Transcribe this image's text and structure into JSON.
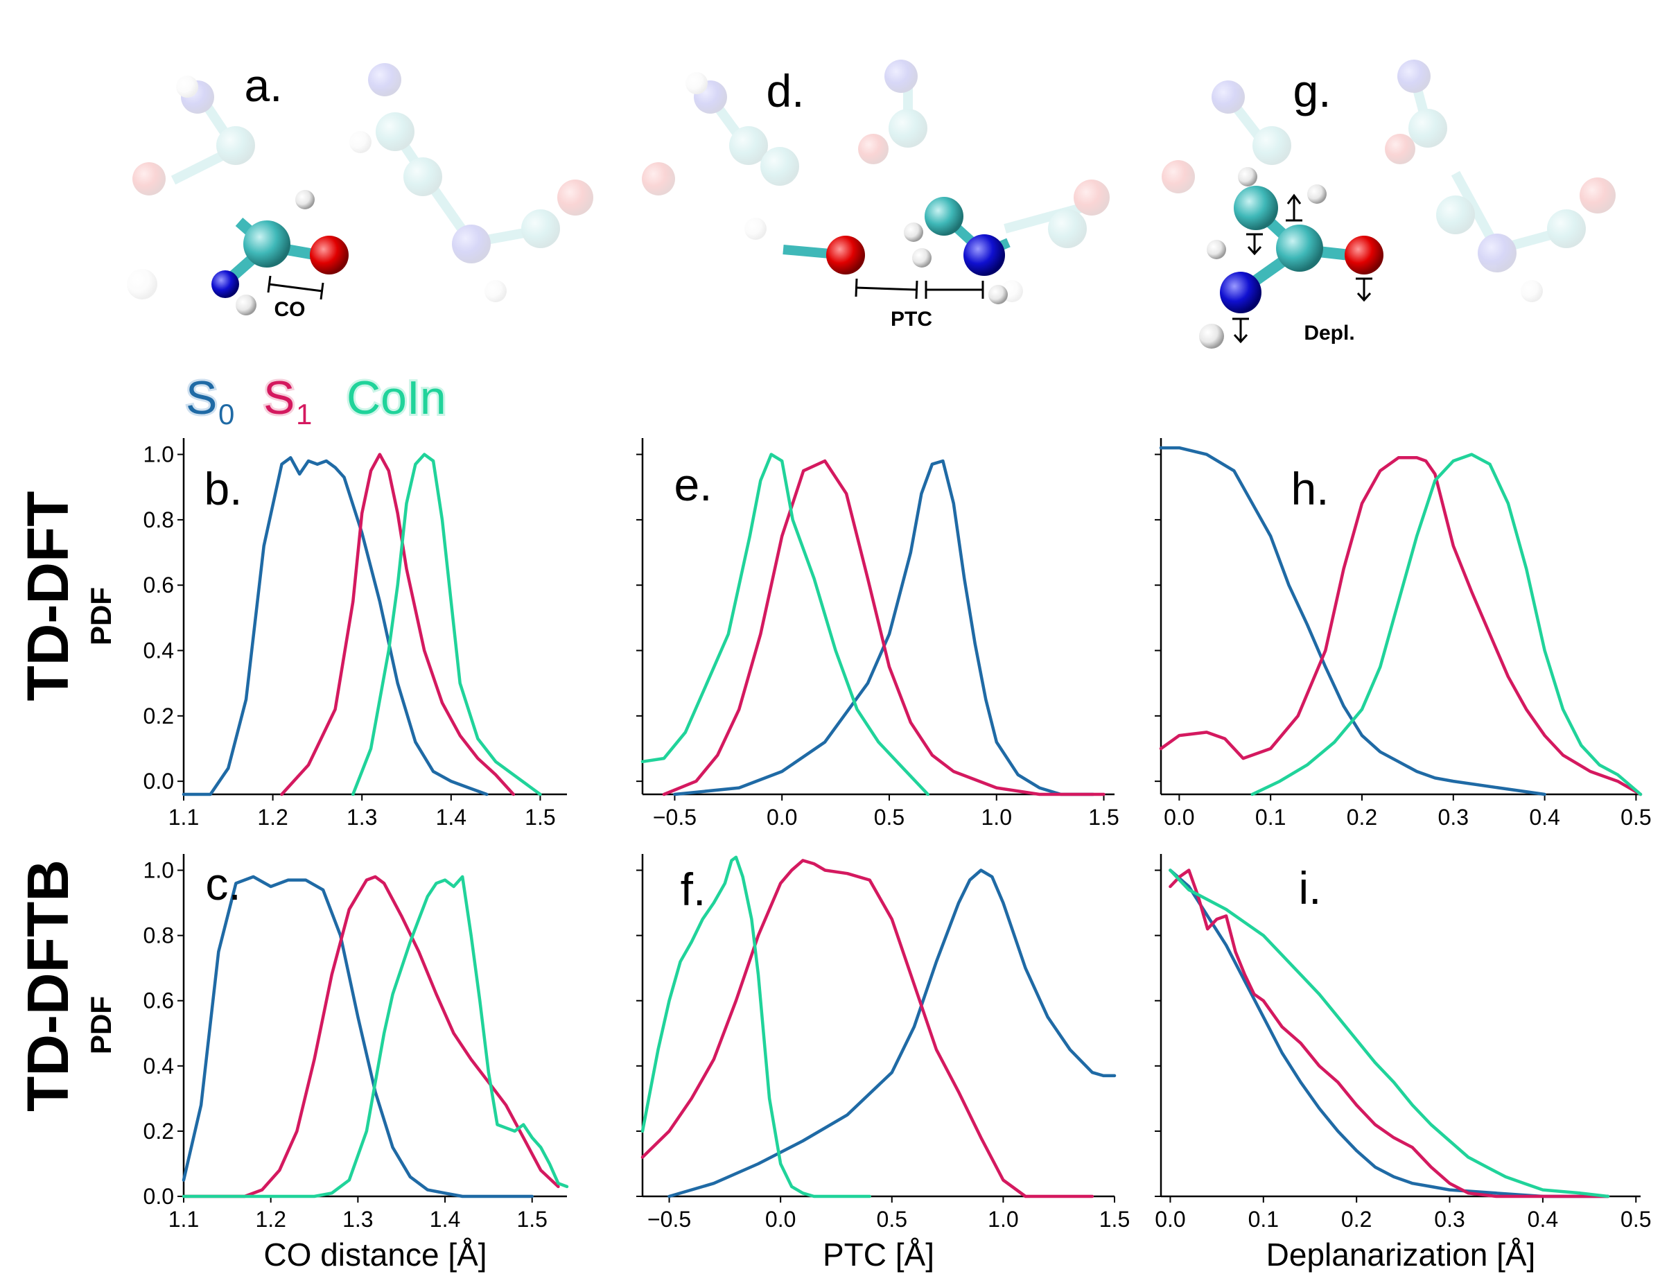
{
  "legend": {
    "s0": "S",
    "s0_sub": "0",
    "s1": "S",
    "s1_sub": "1",
    "coin": "CoIn"
  },
  "colors": {
    "S0": "#1f6aa5",
    "S1": "#d4195f",
    "CoIn": "#20d39a",
    "carbon": "#3fb8b8",
    "oxygen": "#e00000",
    "nitrogen": "#1010d0",
    "hydrogen": "#e8e8e8"
  },
  "row_labels": [
    "TD-DFT",
    "TD-DFTB"
  ],
  "molecules": [
    {
      "letter": "a.",
      "label": "CO"
    },
    {
      "letter": "d.",
      "label": "PTC"
    },
    {
      "letter": "g.",
      "label": "Depl."
    }
  ],
  "chart_data": [
    {
      "type": "line",
      "panel": "b.",
      "xlabel": "",
      "ylabel": "PDF",
      "xlim": [
        1.1,
        1.53
      ],
      "ylim": [
        -0.04,
        1.05
      ],
      "xticks": [
        1.1,
        1.2,
        1.3,
        1.4,
        1.5
      ],
      "xtick_labels": [
        "1.1",
        "1.2",
        "1.3",
        "1.4",
        "1.5"
      ],
      "yticks": [
        0.0,
        0.2,
        0.4,
        0.6,
        0.8,
        1.0
      ],
      "ytick_labels": [
        "0.0",
        "0.2",
        "0.4",
        "0.6",
        "0.8",
        "1.0"
      ],
      "series": [
        {
          "name": "S0",
          "x": [
            1.1,
            1.13,
            1.15,
            1.17,
            1.19,
            1.21,
            1.22,
            1.23,
            1.24,
            1.25,
            1.26,
            1.27,
            1.28,
            1.3,
            1.32,
            1.34,
            1.36,
            1.38,
            1.4,
            1.42,
            1.44
          ],
          "y": [
            -0.04,
            -0.04,
            0.04,
            0.25,
            0.72,
            0.97,
            0.99,
            0.94,
            0.98,
            0.97,
            0.98,
            0.96,
            0.93,
            0.76,
            0.55,
            0.3,
            0.12,
            0.03,
            0.0,
            -0.02,
            -0.04
          ]
        },
        {
          "name": "S1",
          "x": [
            1.21,
            1.24,
            1.27,
            1.29,
            1.3,
            1.31,
            1.32,
            1.33,
            1.34,
            1.35,
            1.37,
            1.39,
            1.41,
            1.43,
            1.45,
            1.47
          ],
          "y": [
            -0.04,
            0.05,
            0.22,
            0.55,
            0.82,
            0.95,
            1.0,
            0.95,
            0.82,
            0.65,
            0.4,
            0.24,
            0.14,
            0.07,
            0.02,
            -0.04
          ]
        },
        {
          "name": "CoIn",
          "x": [
            1.29,
            1.31,
            1.33,
            1.34,
            1.35,
            1.36,
            1.37,
            1.38,
            1.39,
            1.4,
            1.41,
            1.43,
            1.45,
            1.47,
            1.5
          ],
          "y": [
            -0.04,
            0.1,
            0.4,
            0.6,
            0.85,
            0.97,
            1.0,
            0.98,
            0.8,
            0.55,
            0.3,
            0.13,
            0.06,
            0.02,
            -0.04
          ]
        }
      ]
    },
    {
      "type": "line",
      "panel": "e.",
      "xlabel": "",
      "ylabel": "",
      "xlim": [
        -0.65,
        1.55
      ],
      "ylim": [
        -0.04,
        1.05
      ],
      "xticks": [
        -0.5,
        0.0,
        0.5,
        1.0,
        1.5
      ],
      "xtick_labels": [
        "−0.5",
        "0.0",
        "0.5",
        "1.0",
        "1.5"
      ],
      "yticks": [
        0.0,
        0.2,
        0.4,
        0.6,
        0.8,
        1.0
      ],
      "ytick_labels": [
        "",
        "",
        "",
        "",
        "",
        ""
      ],
      "series": [
        {
          "name": "S0",
          "x": [
            -0.5,
            -0.2,
            0.0,
            0.2,
            0.4,
            0.5,
            0.6,
            0.65,
            0.7,
            0.75,
            0.8,
            0.85,
            0.9,
            0.95,
            1.0,
            1.1,
            1.2,
            1.3,
            1.45
          ],
          "y": [
            -0.04,
            -0.02,
            0.03,
            0.12,
            0.3,
            0.45,
            0.7,
            0.88,
            0.97,
            0.98,
            0.85,
            0.62,
            0.42,
            0.25,
            0.12,
            0.02,
            -0.02,
            -0.04,
            -0.04
          ]
        },
        {
          "name": "S1",
          "x": [
            -0.55,
            -0.4,
            -0.3,
            -0.2,
            -0.1,
            0.0,
            0.1,
            0.2,
            0.3,
            0.4,
            0.5,
            0.6,
            0.7,
            0.8,
            1.0,
            1.2,
            1.5
          ],
          "y": [
            -0.04,
            0.0,
            0.08,
            0.22,
            0.45,
            0.75,
            0.95,
            0.98,
            0.88,
            0.62,
            0.35,
            0.18,
            0.08,
            0.03,
            -0.02,
            -0.04,
            -0.04
          ]
        },
        {
          "name": "CoIn",
          "x": [
            -0.65,
            -0.55,
            -0.45,
            -0.35,
            -0.25,
            -0.15,
            -0.1,
            -0.05,
            0.0,
            0.05,
            0.15,
            0.25,
            0.35,
            0.45,
            0.55,
            0.68
          ],
          "y": [
            0.06,
            0.07,
            0.15,
            0.3,
            0.45,
            0.75,
            0.92,
            1.0,
            0.98,
            0.8,
            0.62,
            0.4,
            0.22,
            0.12,
            0.05,
            -0.04
          ]
        }
      ]
    },
    {
      "type": "line",
      "panel": "h.",
      "xlabel": "",
      "ylabel": "",
      "xlim": [
        -0.02,
        0.505
      ],
      "ylim": [
        -0.04,
        1.05
      ],
      "xticks": [
        0.0,
        0.1,
        0.2,
        0.3,
        0.4,
        0.5
      ],
      "xtick_labels": [
        "0.0",
        "0.1",
        "0.2",
        "0.3",
        "0.4",
        "0.5"
      ],
      "yticks": [
        0.0,
        0.2,
        0.4,
        0.6,
        0.8,
        1.0
      ],
      "ytick_labels": [
        "",
        "",
        "",
        "",
        "",
        ""
      ],
      "series": [
        {
          "name": "S0",
          "x": [
            -0.02,
            0.0,
            0.03,
            0.06,
            0.08,
            0.1,
            0.12,
            0.14,
            0.16,
            0.18,
            0.2,
            0.22,
            0.24,
            0.26,
            0.28,
            0.3,
            0.35,
            0.4
          ],
          "y": [
            1.02,
            1.02,
            1.0,
            0.95,
            0.85,
            0.75,
            0.6,
            0.48,
            0.35,
            0.23,
            0.14,
            0.09,
            0.06,
            0.03,
            0.01,
            0.0,
            -0.02,
            -0.04
          ]
        },
        {
          "name": "S1",
          "x": [
            -0.02,
            0.0,
            0.03,
            0.05,
            0.07,
            0.1,
            0.13,
            0.16,
            0.18,
            0.2,
            0.22,
            0.24,
            0.26,
            0.27,
            0.28,
            0.3,
            0.32,
            0.34,
            0.36,
            0.38,
            0.4,
            0.42,
            0.45,
            0.48,
            0.505
          ],
          "y": [
            0.1,
            0.14,
            0.15,
            0.13,
            0.07,
            0.1,
            0.2,
            0.4,
            0.65,
            0.85,
            0.95,
            0.99,
            0.99,
            0.98,
            0.94,
            0.72,
            0.58,
            0.45,
            0.32,
            0.22,
            0.14,
            0.08,
            0.03,
            0.0,
            -0.04
          ]
        },
        {
          "name": "CoIn",
          "x": [
            0.08,
            0.11,
            0.14,
            0.17,
            0.2,
            0.22,
            0.24,
            0.26,
            0.28,
            0.3,
            0.32,
            0.34,
            0.36,
            0.38,
            0.4,
            0.42,
            0.44,
            0.46,
            0.48,
            0.505
          ],
          "y": [
            -0.04,
            0.0,
            0.05,
            0.12,
            0.22,
            0.35,
            0.55,
            0.75,
            0.92,
            0.98,
            1.0,
            0.97,
            0.85,
            0.65,
            0.4,
            0.22,
            0.11,
            0.05,
            0.02,
            -0.04
          ]
        }
      ]
    },
    {
      "type": "line",
      "panel": "c.",
      "xlabel": "CO distance [Å]",
      "ylabel": "PDF",
      "xlim": [
        1.1,
        1.54
      ],
      "ylim": [
        0.0,
        1.05
      ],
      "xticks": [
        1.1,
        1.2,
        1.3,
        1.4,
        1.5
      ],
      "xtick_labels": [
        "1.1",
        "1.2",
        "1.3",
        "1.4",
        "1.5"
      ],
      "yticks": [
        0.0,
        0.2,
        0.4,
        0.6,
        0.8,
        1.0
      ],
      "ytick_labels": [
        "0.0",
        "0.2",
        "0.4",
        "0.6",
        "0.8",
        "1.0"
      ],
      "series": [
        {
          "name": "S0",
          "x": [
            1.1,
            1.12,
            1.14,
            1.16,
            1.18,
            1.2,
            1.22,
            1.24,
            1.26,
            1.28,
            1.3,
            1.32,
            1.34,
            1.36,
            1.38,
            1.4,
            1.42,
            1.45,
            1.5
          ],
          "y": [
            0.05,
            0.28,
            0.75,
            0.96,
            0.98,
            0.95,
            0.97,
            0.97,
            0.94,
            0.8,
            0.55,
            0.32,
            0.15,
            0.06,
            0.02,
            0.01,
            0.0,
            0.0,
            0.0
          ]
        },
        {
          "name": "S1",
          "x": [
            1.1,
            1.15,
            1.17,
            1.19,
            1.21,
            1.23,
            1.25,
            1.27,
            1.29,
            1.31,
            1.32,
            1.33,
            1.35,
            1.37,
            1.39,
            1.41,
            1.43,
            1.45,
            1.47,
            1.49,
            1.51,
            1.53
          ],
          "y": [
            0.0,
            0.0,
            0.0,
            0.02,
            0.08,
            0.2,
            0.42,
            0.68,
            0.88,
            0.97,
            0.98,
            0.96,
            0.86,
            0.75,
            0.62,
            0.5,
            0.42,
            0.35,
            0.28,
            0.18,
            0.08,
            0.03
          ]
        },
        {
          "name": "CoIn",
          "x": [
            1.1,
            1.25,
            1.27,
            1.29,
            1.31,
            1.33,
            1.34,
            1.35,
            1.36,
            1.37,
            1.38,
            1.39,
            1.4,
            1.41,
            1.42,
            1.43,
            1.44,
            1.45,
            1.46,
            1.47,
            1.48,
            1.49,
            1.5,
            1.51,
            1.52,
            1.53,
            1.54
          ],
          "y": [
            0.0,
            0.0,
            0.01,
            0.05,
            0.2,
            0.5,
            0.62,
            0.7,
            0.78,
            0.85,
            0.92,
            0.96,
            0.97,
            0.95,
            0.98,
            0.8,
            0.6,
            0.38,
            0.22,
            0.21,
            0.2,
            0.22,
            0.18,
            0.15,
            0.1,
            0.04,
            0.03
          ]
        }
      ]
    },
    {
      "type": "line",
      "panel": "f.",
      "xlabel": "PTC [Å]",
      "ylabel": "",
      "xlim": [
        -0.62,
        1.5
      ],
      "ylim": [
        0.0,
        1.05
      ],
      "xticks": [
        -0.5,
        0.0,
        0.5,
        1.0,
        1.5
      ],
      "xtick_labels": [
        "−0.5",
        "0.0",
        "0.5",
        "1.0",
        "1.5"
      ],
      "yticks": [
        0.0,
        0.2,
        0.4,
        0.6,
        0.8,
        1.0
      ],
      "ytick_labels": [
        "",
        "",
        "",
        "",
        "",
        ""
      ],
      "series": [
        {
          "name": "S0",
          "x": [
            -0.5,
            -0.3,
            -0.1,
            0.1,
            0.3,
            0.5,
            0.6,
            0.7,
            0.8,
            0.85,
            0.9,
            0.95,
            1.0,
            1.1,
            1.2,
            1.3,
            1.4,
            1.45,
            1.5
          ],
          "y": [
            0.0,
            0.04,
            0.1,
            0.17,
            0.25,
            0.38,
            0.52,
            0.72,
            0.9,
            0.97,
            1.0,
            0.98,
            0.9,
            0.7,
            0.55,
            0.45,
            0.38,
            0.37,
            0.37
          ]
        },
        {
          "name": "S1",
          "x": [
            -0.62,
            -0.5,
            -0.4,
            -0.3,
            -0.2,
            -0.1,
            0.0,
            0.05,
            0.1,
            0.15,
            0.2,
            0.3,
            0.4,
            0.5,
            0.6,
            0.7,
            0.8,
            0.9,
            1.0,
            1.1,
            1.4
          ],
          "y": [
            0.12,
            0.2,
            0.3,
            0.42,
            0.6,
            0.8,
            0.96,
            1.0,
            1.03,
            1.02,
            1.0,
            0.99,
            0.97,
            0.85,
            0.65,
            0.45,
            0.32,
            0.18,
            0.05,
            0.0,
            0.0
          ]
        },
        {
          "name": "CoIn",
          "x": [
            -0.62,
            -0.55,
            -0.5,
            -0.45,
            -0.4,
            -0.35,
            -0.3,
            -0.25,
            -0.22,
            -0.2,
            -0.17,
            -0.13,
            -0.1,
            -0.05,
            0.0,
            0.05,
            0.1,
            0.15,
            0.2,
            0.3,
            0.4
          ],
          "y": [
            0.2,
            0.45,
            0.6,
            0.72,
            0.78,
            0.85,
            0.9,
            0.96,
            1.03,
            1.04,
            0.98,
            0.85,
            0.68,
            0.3,
            0.1,
            0.03,
            0.01,
            0.0,
            0.0,
            0.0,
            0.0
          ]
        }
      ]
    },
    {
      "type": "line",
      "panel": "i.",
      "xlabel": "Deplanarization [Å]",
      "ylabel": "",
      "xlim": [
        -0.01,
        0.505
      ],
      "ylim": [
        0.0,
        1.05
      ],
      "xticks": [
        0.0,
        0.1,
        0.2,
        0.3,
        0.4,
        0.5
      ],
      "xtick_labels": [
        "0.0",
        "0.1",
        "0.2",
        "0.3",
        "0.4",
        "0.5"
      ],
      "yticks": [
        0.0,
        0.2,
        0.4,
        0.6,
        0.8,
        1.0
      ],
      "ytick_labels": [
        "",
        "",
        "",
        "",
        "",
        ""
      ],
      "series": [
        {
          "name": "S0",
          "x": [
            0.0,
            0.02,
            0.04,
            0.06,
            0.08,
            0.1,
            0.12,
            0.14,
            0.16,
            0.18,
            0.2,
            0.22,
            0.24,
            0.26,
            0.28,
            0.3,
            0.35,
            0.4,
            0.47
          ],
          "y": [
            1.0,
            0.95,
            0.86,
            0.77,
            0.66,
            0.55,
            0.44,
            0.35,
            0.27,
            0.2,
            0.14,
            0.09,
            0.06,
            0.04,
            0.03,
            0.02,
            0.01,
            0.0,
            0.0
          ]
        },
        {
          "name": "S1",
          "x": [
            0.0,
            0.01,
            0.02,
            0.03,
            0.04,
            0.05,
            0.06,
            0.07,
            0.08,
            0.09,
            0.1,
            0.12,
            0.14,
            0.16,
            0.18,
            0.2,
            0.22,
            0.24,
            0.26,
            0.28,
            0.3,
            0.32,
            0.35,
            0.4,
            0.47
          ],
          "y": [
            0.95,
            0.98,
            1.0,
            0.92,
            0.82,
            0.85,
            0.86,
            0.75,
            0.68,
            0.62,
            0.6,
            0.52,
            0.47,
            0.4,
            0.35,
            0.28,
            0.22,
            0.18,
            0.15,
            0.09,
            0.04,
            0.01,
            0.0,
            0.0,
            0.0
          ]
        },
        {
          "name": "CoIn",
          "x": [
            0.0,
            0.02,
            0.04,
            0.06,
            0.08,
            0.1,
            0.12,
            0.14,
            0.16,
            0.18,
            0.2,
            0.22,
            0.24,
            0.26,
            0.28,
            0.3,
            0.32,
            0.34,
            0.36,
            0.38,
            0.4,
            0.44,
            0.47
          ],
          "y": [
            1.0,
            0.94,
            0.91,
            0.88,
            0.84,
            0.8,
            0.74,
            0.68,
            0.62,
            0.55,
            0.48,
            0.41,
            0.35,
            0.28,
            0.22,
            0.17,
            0.12,
            0.09,
            0.06,
            0.04,
            0.02,
            0.01,
            0.0
          ]
        }
      ]
    }
  ]
}
